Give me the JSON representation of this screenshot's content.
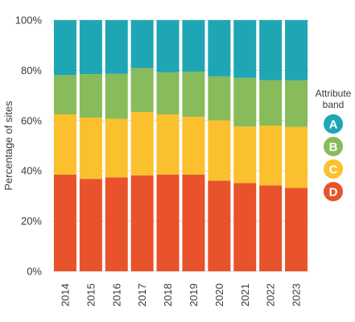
{
  "chart_data": {
    "type": "bar",
    "stacked": true,
    "ylabel": "Percentage of sites",
    "ylim": [
      0,
      100
    ],
    "yticks": [
      "0%",
      "20%",
      "40%",
      "60%",
      "80%",
      "100%"
    ],
    "categories": [
      "2014",
      "2015",
      "2016",
      "2017",
      "2018",
      "2019",
      "2020",
      "2021",
      "2022",
      "2023"
    ],
    "series": [
      {
        "name": "D",
        "color": "#e8532b",
        "values": [
          38.5,
          36.8,
          37.4,
          38.2,
          38.5,
          38.5,
          36.1,
          35.1,
          34.2,
          33.2
        ]
      },
      {
        "name": "C",
        "color": "#fbc02d",
        "values": [
          24.0,
          24.4,
          23.3,
          25.2,
          24.0,
          23.0,
          24.0,
          22.5,
          23.8,
          24.3
        ]
      },
      {
        "name": "B",
        "color": "#88bb5a",
        "values": [
          15.6,
          17.3,
          17.9,
          17.5,
          16.7,
          18.0,
          17.5,
          19.4,
          18.1,
          18.5
        ]
      },
      {
        "name": "A",
        "color": "#1fa6b5",
        "values": [
          21.9,
          21.5,
          21.4,
          19.1,
          20.8,
          20.5,
          22.4,
          23.0,
          23.9,
          24.0
        ]
      }
    ],
    "legend": {
      "title_lines": [
        "Attribute",
        "band"
      ],
      "placement": "right",
      "order": [
        "A",
        "B",
        "C",
        "D"
      ]
    },
    "grid": true
  }
}
